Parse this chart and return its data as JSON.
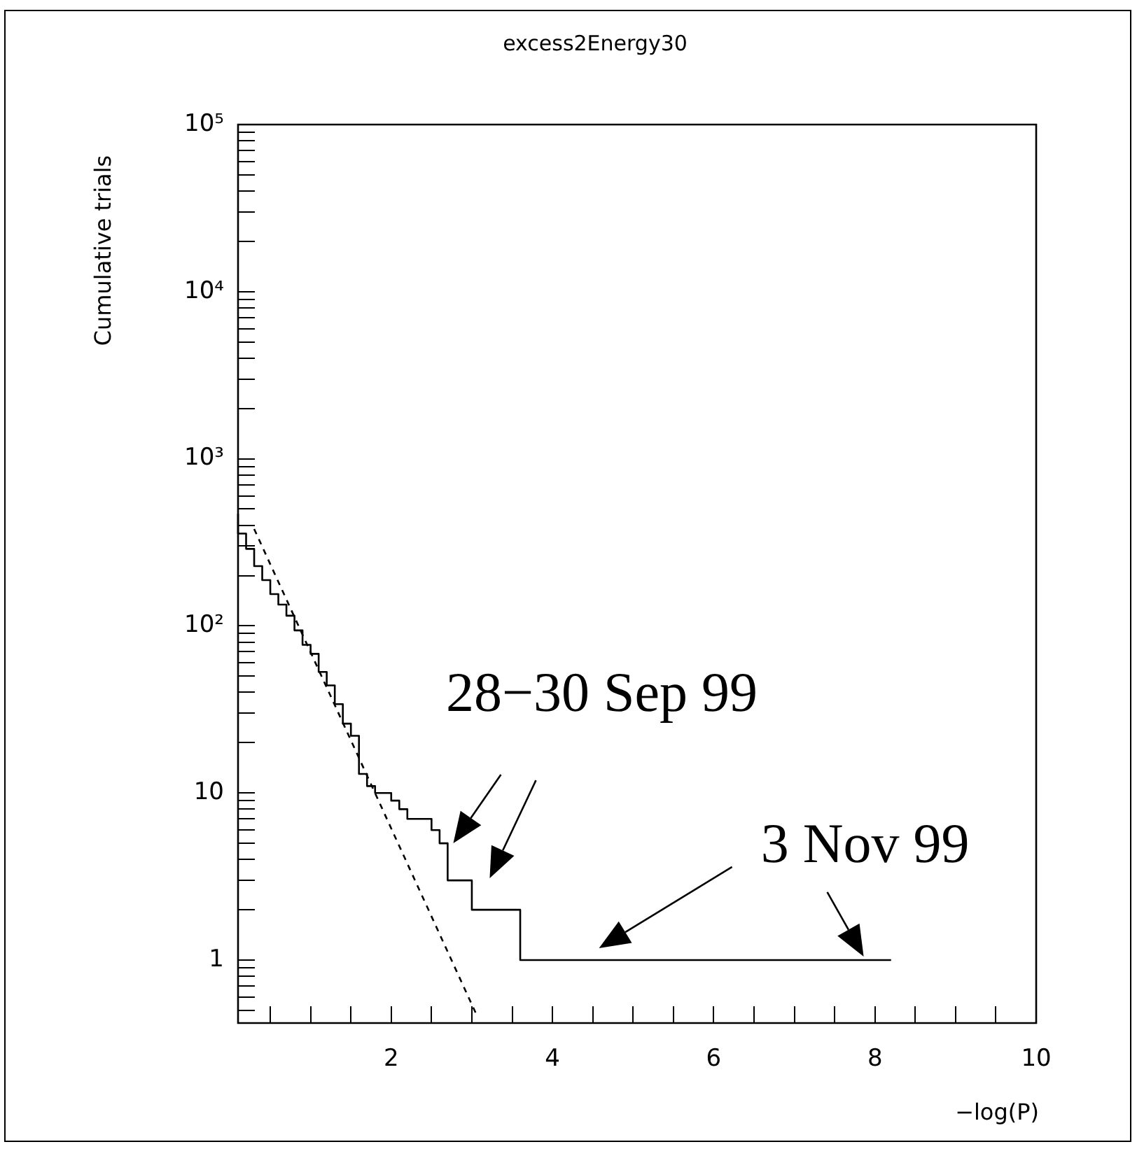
{
  "chart_data": {
    "type": "step",
    "title": "excess2Energy30",
    "xlabel": "−log(P)",
    "ylabel": "Cumulative trials",
    "xlim": [
      0.1,
      10
    ],
    "xticks": [
      {
        "value": 0.5,
        "label": null
      },
      {
        "value": 1,
        "label": null
      },
      {
        "value": 1.5,
        "label": null
      },
      2,
      {
        "value": 2.5,
        "label": null
      },
      {
        "value": 3,
        "label": null
      },
      {
        "value": 3.5,
        "label": null
      },
      4,
      {
        "value": 4.5,
        "label": null
      },
      {
        "value": 5,
        "label": null
      },
      {
        "value": 5.5,
        "label": null
      },
      6,
      {
        "value": 6.5,
        "label": null
      },
      {
        "value": 7,
        "label": null
      },
      {
        "value": 7.5,
        "label": null
      },
      8,
      {
        "value": 8.5,
        "label": null
      },
      {
        "value": 9,
        "label": null
      },
      {
        "value": 9.5,
        "label": null
      },
      10
    ],
    "ylim": [
      0.42,
      100000
    ],
    "log": "y",
    "yticks": [
      {
        "value": 0.5,
        "label": null
      },
      {
        "value": 0.6,
        "label": null
      },
      {
        "value": 0.7,
        "label": null
      },
      {
        "value": 0.8,
        "label": null
      },
      {
        "value": 0.9,
        "label": null
      },
      1,
      {
        "value": 2,
        "label": null
      },
      {
        "value": 3,
        "label": null
      },
      {
        "value": 4,
        "label": null
      },
      {
        "value": 5,
        "label": null
      },
      {
        "value": 6,
        "label": null
      },
      {
        "value": 7,
        "label": null
      },
      {
        "value": 8,
        "label": null
      },
      {
        "value": 9,
        "label": null
      },
      10,
      {
        "value": 20,
        "label": null
      },
      {
        "value": 30,
        "label": null
      },
      {
        "value": 40,
        "label": null
      },
      {
        "value": 50,
        "label": null
      },
      {
        "value": 60,
        "label": null
      },
      {
        "value": 70,
        "label": null
      },
      {
        "value": 80,
        "label": null
      },
      {
        "value": 90,
        "label": null
      },
      {
        "value": 100,
        "label": "10²"
      },
      {
        "value": 200,
        "label": null
      },
      {
        "value": 300,
        "label": null
      },
      {
        "value": 400,
        "label": null
      },
      {
        "value": 500,
        "label": null
      },
      {
        "value": 600,
        "label": null
      },
      {
        "value": 700,
        "label": null
      },
      {
        "value": 800,
        "label": null
      },
      {
        "value": 900,
        "label": null
      },
      {
        "value": 1000,
        "label": "10³"
      },
      {
        "value": 2000,
        "label": null
      },
      {
        "value": 3000,
        "label": null
      },
      {
        "value": 4000,
        "label": null
      },
      {
        "value": 5000,
        "label": null
      },
      {
        "value": 6000,
        "label": null
      },
      {
        "value": 7000,
        "label": null
      },
      {
        "value": 8000,
        "label": null
      },
      {
        "value": 9000,
        "label": null
      },
      {
        "value": 10000,
        "label": "10⁴"
      },
      {
        "value": 20000,
        "label": null
      },
      {
        "value": 30000,
        "label": null
      },
      {
        "value": 40000,
        "label": null
      },
      {
        "value": 50000,
        "label": null
      },
      {
        "value": 60000,
        "label": null
      },
      {
        "value": 70000,
        "label": null
      },
      {
        "value": 80000,
        "label": null
      },
      {
        "value": 90000,
        "label": null
      },
      {
        "value": 100000,
        "label": "10⁵"
      }
    ],
    "grid": false,
    "legend": false,
    "marker": "none",
    "series": [
      {
        "type": "step",
        "color": "#000000",
        "line_style": "solid",
        "x": [
          0.1,
          0.2,
          0.3,
          0.4,
          0.5,
          0.6,
          0.7,
          0.8,
          0.9,
          1.0,
          1.1,
          1.2,
          1.3,
          1.4,
          1.5,
          1.6,
          1.7,
          1.8,
          2.0,
          2.1,
          2.2,
          2.5,
          2.6,
          2.7,
          3.0,
          3.6,
          4.5,
          8.2
        ],
        "values": [
          468,
          357,
          289,
          228,
          188,
          155,
          134,
          115,
          94,
          77,
          68,
          53,
          44,
          34,
          26,
          22,
          13,
          11,
          10,
          9,
          8,
          7,
          6,
          5,
          3,
          2,
          1,
          1
        ]
      },
      {
        "type": "line",
        "color": "#000000",
        "line_style": "dashed",
        "x": [
          0.3,
          3.05
        ],
        "values": [
          380,
          0.48
        ]
      }
    ],
    "annotations": [
      {
        "text": "28−30 Sep 99",
        "x": 2.77,
        "y": 5
      },
      {
        "text": "3 Nov 99",
        "x": 7.86,
        "y": 1.05
      }
    ]
  }
}
